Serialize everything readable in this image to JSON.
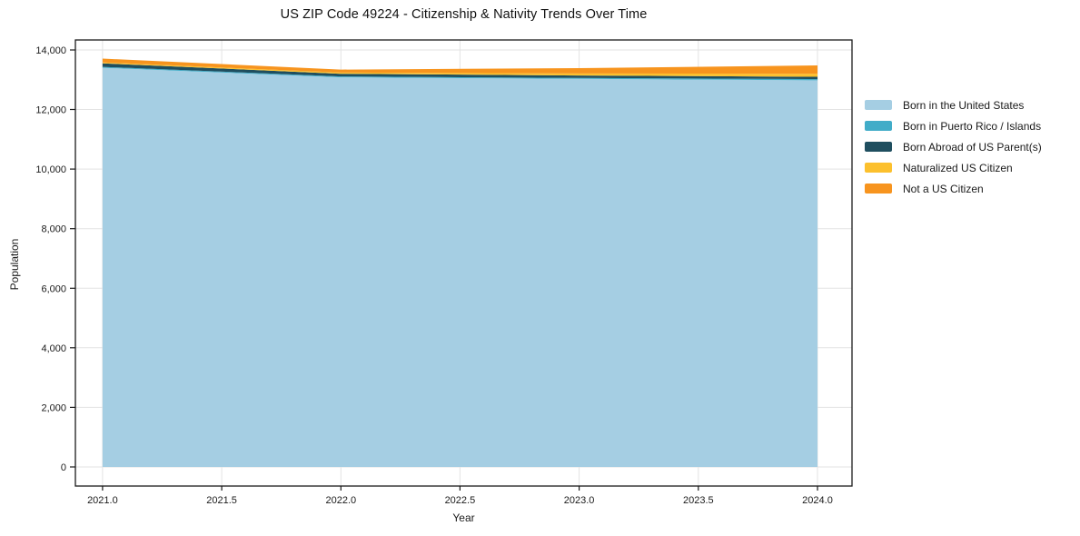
{
  "chart_data": {
    "type": "area",
    "stacked": true,
    "title": "US ZIP Code 49224 - Citizenship & Nativity Trends Over Time",
    "xlabel": "Year",
    "ylabel": "Population",
    "x": [
      2021,
      2022,
      2023,
      2024
    ],
    "series": [
      {
        "name": "Born in the United States",
        "color": "#a5cee3",
        "values": [
          13400,
          13080,
          13030,
          12980
        ]
      },
      {
        "name": "Born in Puerto Rico / Islands",
        "color": "#41acc8",
        "values": [
          30,
          30,
          30,
          40
        ]
      },
      {
        "name": "Born Abroad of US Parent(s)",
        "color": "#1f4e5f",
        "values": [
          120,
          90,
          80,
          80
        ]
      },
      {
        "name": "Naturalized US Citizen",
        "color": "#fcc02d",
        "values": [
          30,
          40,
          70,
          100
        ]
      },
      {
        "name": "Not a US Citizen",
        "color": "#f7941e",
        "values": [
          130,
          100,
          180,
          280
        ]
      }
    ],
    "stack_totals": [
      13710,
      13340,
      13390,
      13480
    ],
    "xlim": [
      2020.886,
      2024.145
    ],
    "ylim": [
      -641,
      14334
    ],
    "x_ticks": {
      "values": [
        2021.0,
        2021.5,
        2022.0,
        2022.5,
        2023.0,
        2023.5,
        2024.0
      ],
      "labels": [
        "2021.0",
        "2021.5",
        "2022.0",
        "2022.5",
        "2023.0",
        "2023.5",
        "2024.0"
      ]
    },
    "y_ticks": {
      "values": [
        0,
        2000,
        4000,
        6000,
        8000,
        10000,
        12000,
        14000
      ],
      "labels": [
        "0",
        "2,000",
        "4,000",
        "6,000",
        "8,000",
        "10,000",
        "12,000",
        "14,000"
      ]
    },
    "grid": true,
    "legend_position": "right-outside",
    "colors": {
      "background": "#ffffff",
      "grid": "#e3e3e3",
      "spine": "#1a1a1a",
      "tick_text": "#1a1a1a"
    }
  }
}
